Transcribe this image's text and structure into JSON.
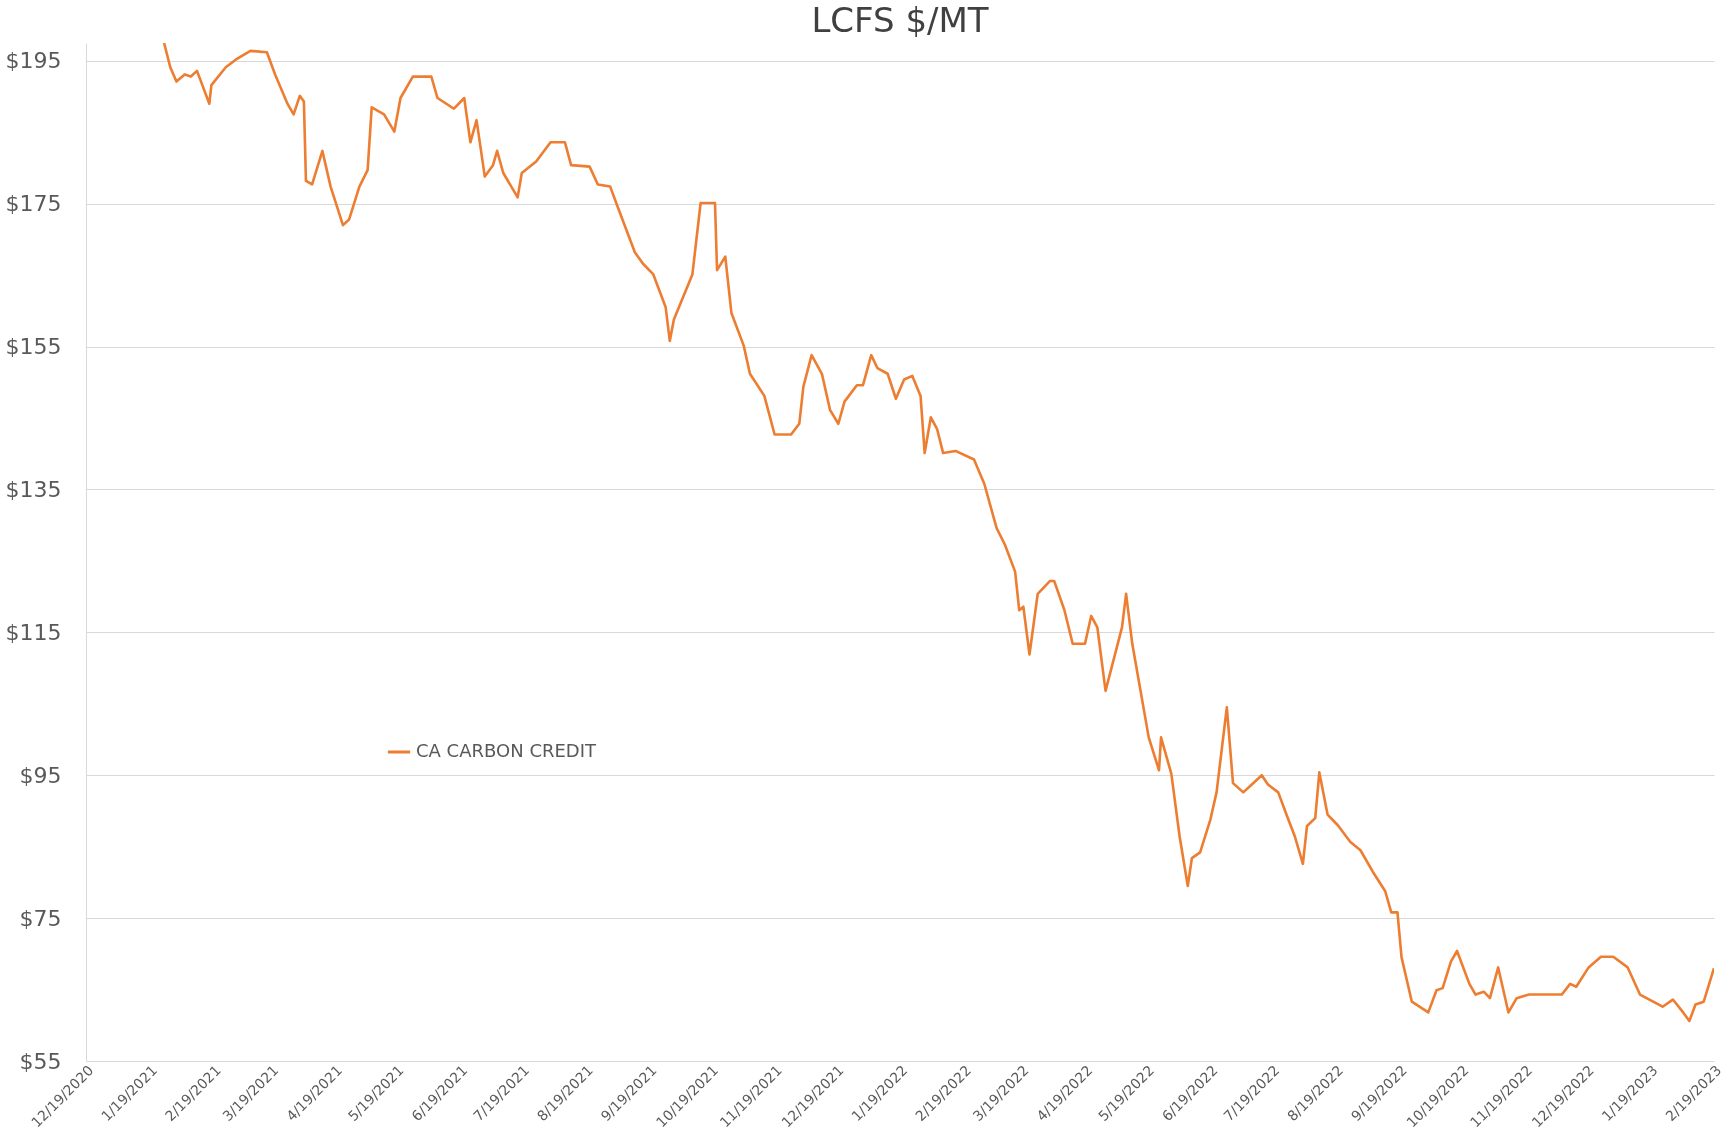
{
  "chart_data": {
    "type": "line",
    "title": "LCFS $/MT",
    "xlim": [
      "2020-12-19",
      "2023-02-19"
    ],
    "xticks": [
      {
        "value": "2020-12-19",
        "label": "12/19/2020"
      },
      {
        "value": "2021-01-19",
        "label": "1/19/2021"
      },
      {
        "value": "2021-02-19",
        "label": "2/19/2021"
      },
      {
        "value": "2021-03-19",
        "label": "3/19/2021"
      },
      {
        "value": "2021-04-19",
        "label": "4/19/2021"
      },
      {
        "value": "2021-05-19",
        "label": "5/19/2021"
      },
      {
        "value": "2021-06-19",
        "label": "6/19/2021"
      },
      {
        "value": "2021-07-19",
        "label": "7/19/2021"
      },
      {
        "value": "2021-08-19",
        "label": "8/19/2021"
      },
      {
        "value": "2021-09-19",
        "label": "9/19/2021"
      },
      {
        "value": "2021-10-19",
        "label": "10/19/2021"
      },
      {
        "value": "2021-11-19",
        "label": "11/19/2021"
      },
      {
        "value": "2021-12-19",
        "label": "12/19/2021"
      },
      {
        "value": "2022-01-19",
        "label": "1/19/2022"
      },
      {
        "value": "2022-02-19",
        "label": "2/19/2022"
      },
      {
        "value": "2022-03-19",
        "label": "3/19/2022"
      },
      {
        "value": "2022-04-19",
        "label": "4/19/2022"
      },
      {
        "value": "2022-05-19",
        "label": "5/19/2022"
      },
      {
        "value": "2022-06-19",
        "label": "6/19/2022"
      },
      {
        "value": "2022-07-19",
        "label": "7/19/2022"
      },
      {
        "value": "2022-08-19",
        "label": "8/19/2022"
      },
      {
        "value": "2022-09-19",
        "label": "9/19/2022"
      },
      {
        "value": "2022-10-19",
        "label": "10/19/2022"
      },
      {
        "value": "2022-11-19",
        "label": "11/19/2022"
      },
      {
        "value": "2022-12-19",
        "label": "12/19/2022"
      },
      {
        "value": "2023-01-19",
        "label": "1/19/2023"
      },
      {
        "value": "2023-02-19",
        "label": "2/19/2023"
      }
    ],
    "ylim": [
      55,
      197.5
    ],
    "yticks": [
      {
        "value": 55,
        "label": "$55"
      },
      {
        "value": 75,
        "label": "$75"
      },
      {
        "value": 95,
        "label": "$95"
      },
      {
        "value": 115,
        "label": "$115"
      },
      {
        "value": 135,
        "label": "$135"
      },
      {
        "value": 155,
        "label": "$155"
      },
      {
        "value": 175,
        "label": "$175"
      },
      {
        "value": 195,
        "label": "$195"
      }
    ],
    "grid": "y",
    "legend": "bottom left",
    "marker": "none",
    "line_style": "solid",
    "x": [
      "2021-01-26",
      "2021-01-29",
      "2021-02-01",
      "2021-02-05",
      "2021-02-08",
      "2021-02-11",
      "2021-02-17",
      "2021-02-18",
      "2021-02-25",
      "2021-03-02",
      "2021-03-09",
      "2021-03-17",
      "2021-03-21",
      "2021-03-27",
      "2021-03-30",
      "2021-04-02",
      "2021-04-04",
      "2021-04-05",
      "2021-04-08",
      "2021-04-13",
      "2021-04-17",
      "2021-04-23",
      "2021-04-26",
      "2021-05-01",
      "2021-05-05",
      "2021-05-07",
      "2021-05-13",
      "2021-05-18",
      "2021-05-21",
      "2021-05-27",
      "2021-06-05",
      "2021-06-08",
      "2021-06-16",
      "2021-06-21",
      "2021-06-24",
      "2021-06-27",
      "2021-07-01",
      "2021-07-05",
      "2021-07-07",
      "2021-07-10",
      "2021-07-17",
      "2021-07-19",
      "2021-07-26",
      "2021-08-02",
      "2021-08-09",
      "2021-08-12",
      "2021-08-21",
      "2021-08-25",
      "2021-08-31",
      "2021-09-04",
      "2021-09-12",
      "2021-09-16",
      "2021-09-21",
      "2021-09-27",
      "2021-09-29",
      "2021-10-01",
      "2021-10-10",
      "2021-10-14",
      "2021-10-21",
      "2021-10-22",
      "2021-10-26",
      "2021-10-29",
      "2021-11-04",
      "2021-11-07",
      "2021-11-14",
      "2021-11-19",
      "2021-11-27",
      "2021-12-01",
      "2021-12-03",
      "2021-12-07",
      "2021-12-12",
      "2021-12-16",
      "2021-12-20",
      "2021-12-23",
      "2021-12-29",
      "2022-01-01",
      "2022-01-05",
      "2022-01-08",
      "2022-01-13",
      "2022-01-17",
      "2022-01-21",
      "2022-01-25",
      "2022-01-29",
      "2022-01-31",
      "2022-02-03",
      "2022-02-06",
      "2022-02-09",
      "2022-02-15",
      "2022-02-24",
      "2022-03-01",
      "2022-03-07",
      "2022-03-11",
      "2022-03-16",
      "2022-03-18",
      "2022-03-20",
      "2022-03-23",
      "2022-03-27",
      "2022-04-02",
      "2022-04-04",
      "2022-04-09",
      "2022-04-13",
      "2022-04-19",
      "2022-04-22",
      "2022-04-25",
      "2022-04-29",
      "2022-05-07",
      "2022-05-09",
      "2022-05-12",
      "2022-05-20",
      "2022-05-25",
      "2022-05-26",
      "2022-05-31",
      "2022-06-04",
      "2022-06-08",
      "2022-06-10",
      "2022-06-14",
      "2022-06-19",
      "2022-06-22",
      "2022-06-27",
      "2022-06-30",
      "2022-07-05",
      "2022-07-11",
      "2022-07-14",
      "2022-07-17",
      "2022-07-22",
      "2022-07-26",
      "2022-07-30",
      "2022-08-03",
      "2022-08-05",
      "2022-08-09",
      "2022-08-11",
      "2022-08-15",
      "2022-08-20",
      "2022-08-26",
      "2022-08-31",
      "2022-09-06",
      "2022-09-12",
      "2022-09-15",
      "2022-09-18",
      "2022-09-20",
      "2022-09-25",
      "2022-10-03",
      "2022-10-07",
      "2022-10-10",
      "2022-10-14",
      "2022-10-17",
      "2022-10-23",
      "2022-10-26",
      "2022-10-30",
      "2022-11-02",
      "2022-11-06",
      "2022-11-11",
      "2022-11-15",
      "2022-11-21",
      "2022-12-07",
      "2022-12-11",
      "2022-12-14",
      "2022-12-20",
      "2022-12-26",
      "2023-01-01",
      "2023-01-08",
      "2023-01-14",
      "2023-01-25",
      "2023-01-30",
      "2023-02-04",
      "2023-02-07",
      "2023-02-10",
      "2023-02-14",
      "2023-02-19"
    ],
    "series": [
      {
        "name": "CA CARBON CREDIT",
        "color": "#ed7d31",
        "values": [
          197.5,
          194.1,
          192.1,
          193.1,
          192.8,
          193.6,
          189.0,
          191.6,
          194.1,
          195.2,
          196.4,
          196.2,
          193.1,
          189.0,
          187.5,
          190.1,
          189.3,
          178.2,
          177.7,
          182.4,
          177.4,
          172.0,
          172.8,
          177.4,
          179.7,
          188.5,
          187.5,
          185.1,
          189.8,
          192.8,
          192.8,
          189.8,
          188.3,
          189.8,
          183.6,
          186.7,
          178.8,
          180.4,
          182.4,
          179.3,
          175.9,
          179.3,
          180.9,
          183.6,
          183.6,
          180.4,
          180.2,
          177.7,
          177.4,
          174.3,
          168.2,
          166.6,
          165.1,
          160.5,
          155.8,
          158.8,
          165.1,
          175.1,
          175.1,
          165.7,
          167.6,
          159.7,
          155.1,
          151.2,
          148.1,
          142.7,
          142.7,
          144.2,
          149.4,
          153.8,
          151.2,
          146.1,
          144.2,
          147.3,
          149.6,
          149.6,
          153.8,
          152.0,
          151.2,
          147.7,
          150.4,
          150.9,
          148.1,
          140.1,
          145.1,
          143.5,
          140.1,
          140.4,
          139.2,
          135.8,
          129.6,
          127.3,
          123.5,
          118.1,
          118.6,
          111.9,
          120.4,
          122.2,
          122.2,
          118.1,
          113.4,
          113.4,
          117.3,
          115.7,
          106.8,
          115.7,
          120.4,
          113.4,
          100.3,
          95.7,
          100.3,
          95.2,
          86.5,
          79.5,
          83.4,
          84.2,
          88.8,
          92.6,
          104.5,
          93.9,
          92.6,
          94.2,
          95.0,
          93.7,
          92.6,
          89.5,
          86.5,
          82.6,
          87.9,
          89.0,
          95.4,
          89.5,
          88.0,
          85.7,
          84.5,
          81.5,
          78.8,
          75.8,
          75.8,
          69.5,
          63.3,
          61.8,
          64.9,
          65.2,
          68.9,
          70.4,
          65.8,
          64.3,
          64.7,
          63.8,
          68.1,
          61.8,
          63.8,
          64.3,
          64.3,
          65.8,
          65.4,
          68.1,
          69.6,
          69.6,
          68.1,
          64.3,
          62.6,
          63.6,
          61.8,
          60.6,
          62.9,
          63.3,
          68.0
        ]
      }
    ]
  }
}
